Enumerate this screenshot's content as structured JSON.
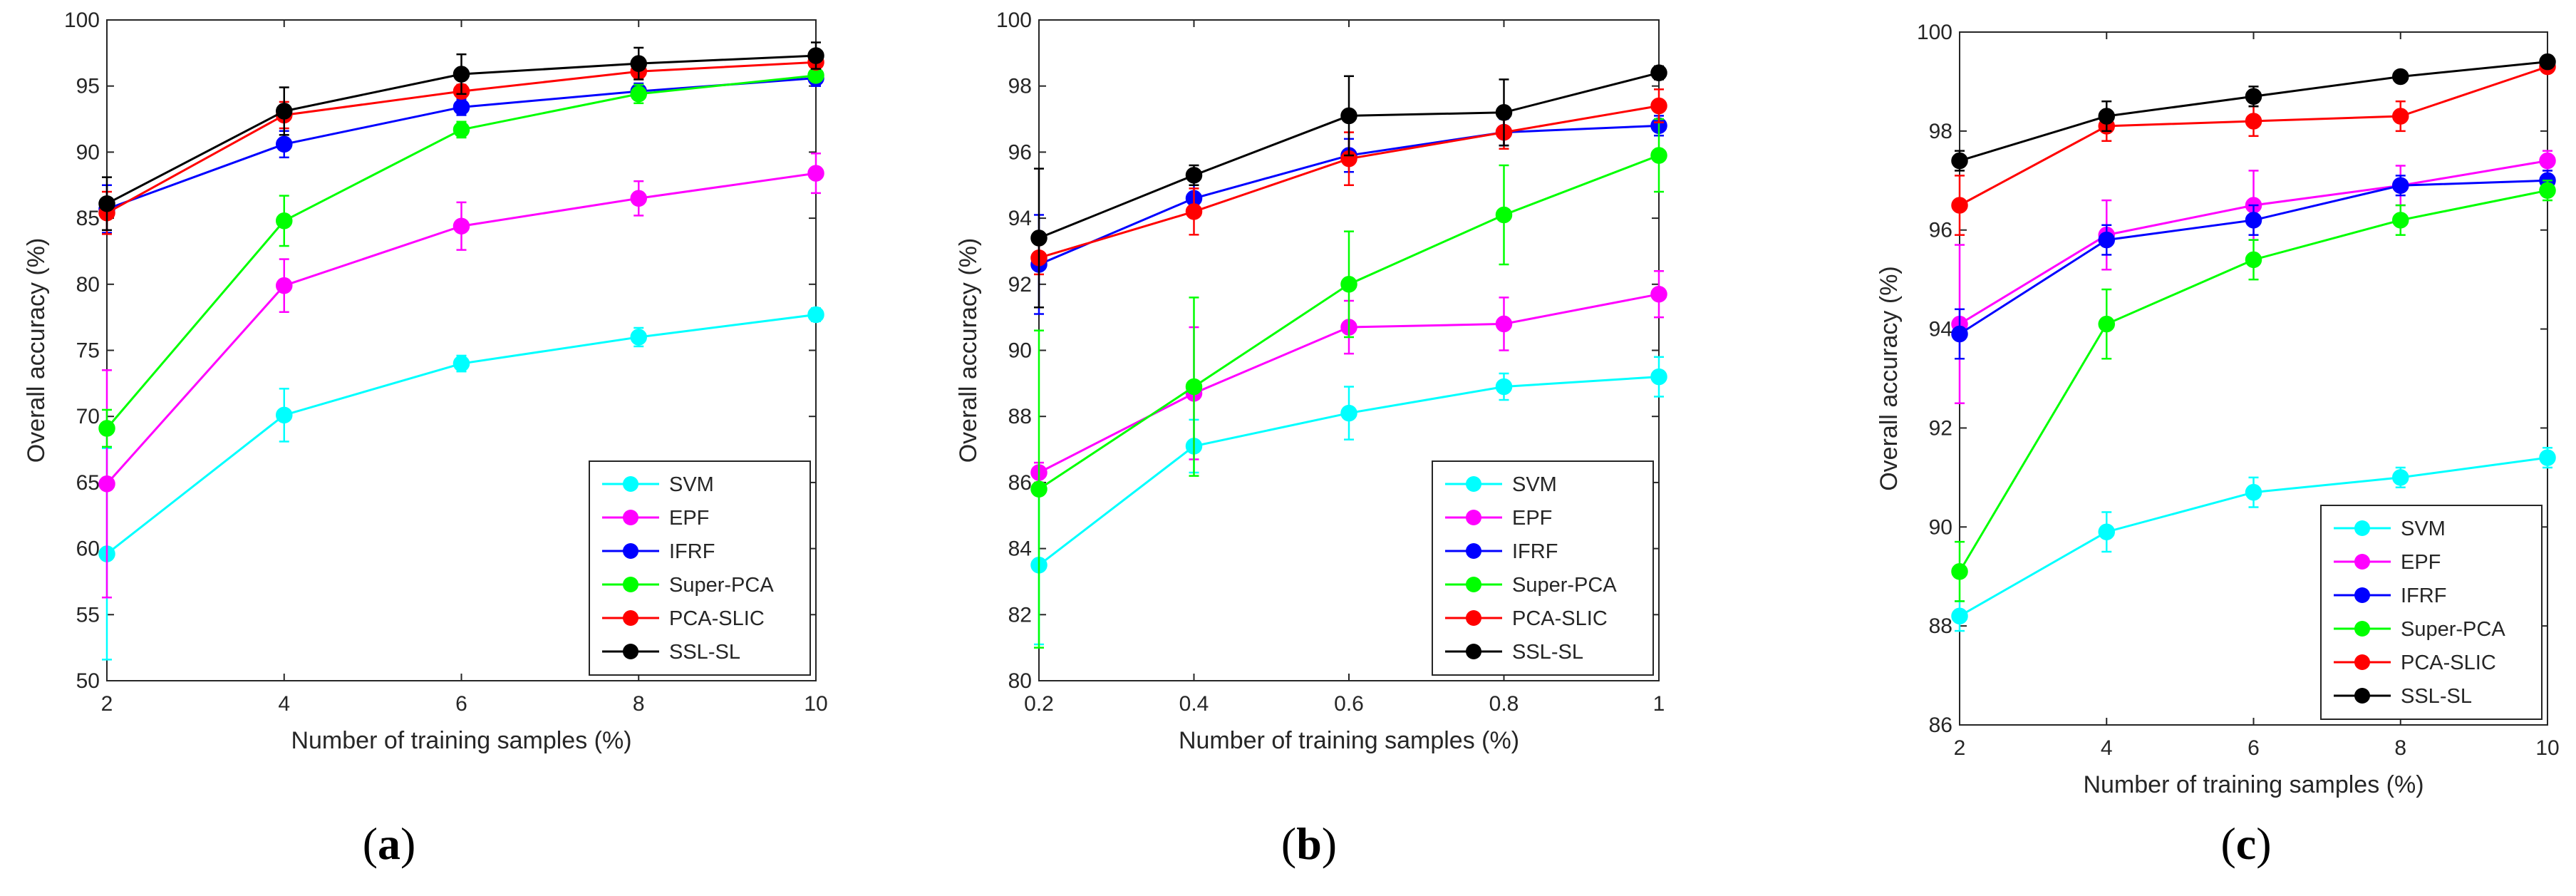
{
  "colors": {
    "SVM": "#00ffff",
    "EPF": "#ff00ff",
    "IFRF": "#0000ff",
    "Super-PCA": "#00ff00",
    "PCA-SLIC": "#ff0000",
    "SSL-SL": "#000000"
  },
  "chart_data": [
    {
      "type": "line",
      "panel": "a",
      "caption": {
        "open": "(",
        "letter": "a",
        "close": ")"
      },
      "xlabel": "Number of training samples (%)",
      "ylabel": "Overall accuracy (%)",
      "x": [
        2,
        4,
        6,
        8,
        10
      ],
      "xticks": [
        "2",
        "4",
        "6",
        "8",
        "10"
      ],
      "xlim": [
        2,
        10
      ],
      "ylim": [
        50,
        100
      ],
      "yticks": [
        "50",
        "55",
        "60",
        "65",
        "70",
        "75",
        "80",
        "85",
        "90",
        "95",
        "100"
      ],
      "legend_position": "bottom-right",
      "series": [
        {
          "name": "SVM",
          "values": [
            59.6,
            70.1,
            74.0,
            76.0,
            77.7
          ],
          "errors": [
            8.0,
            2.0,
            0.6,
            0.7,
            0.5
          ]
        },
        {
          "name": "EPF",
          "values": [
            64.9,
            79.9,
            84.4,
            86.5,
            88.4
          ],
          "errors": [
            8.6,
            2.0,
            1.8,
            1.3,
            1.5
          ]
        },
        {
          "name": "IFRF",
          "values": [
            85.7,
            90.6,
            93.4,
            94.6,
            95.6
          ],
          "errors": [
            1.8,
            1.0,
            0.6,
            0.6,
            0.6
          ]
        },
        {
          "name": "Super-PCA",
          "values": [
            69.1,
            84.8,
            91.7,
            94.4,
            95.8
          ],
          "errors": [
            1.4,
            1.9,
            0.6,
            0.7,
            0.4
          ]
        },
        {
          "name": "PCA-SLIC",
          "values": [
            85.4,
            92.8,
            94.6,
            96.1,
            96.8
          ],
          "errors": [
            1.6,
            1.0,
            0.5,
            0.6,
            0.5
          ]
        },
        {
          "name": "SSL-SL",
          "values": [
            86.1,
            93.1,
            95.9,
            96.7,
            97.3
          ],
          "errors": [
            2.0,
            1.8,
            1.5,
            1.2,
            1.0
          ]
        }
      ]
    },
    {
      "type": "line",
      "panel": "b",
      "caption": {
        "open": "(",
        "letter": "b",
        "close": ")"
      },
      "xlabel": "Number of training samples (%)",
      "ylabel": "Overall accuracy (%)",
      "x": [
        0.2,
        0.4,
        0.6,
        0.8,
        1.0
      ],
      "xticks": [
        "0.2",
        "0.4",
        "0.6",
        "0.8",
        "1"
      ],
      "xlim": [
        0.2,
        1.0
      ],
      "ylim": [
        80,
        100
      ],
      "yticks": [
        "80",
        "82",
        "84",
        "86",
        "88",
        "90",
        "92",
        "94",
        "96",
        "98",
        "100"
      ],
      "legend_position": "bottom-right",
      "series": [
        {
          "name": "SVM",
          "values": [
            83.5,
            87.1,
            88.1,
            88.9,
            89.2
          ],
          "errors": [
            2.4,
            0.8,
            0.8,
            0.4,
            0.6
          ]
        },
        {
          "name": "EPF",
          "values": [
            86.3,
            88.7,
            90.7,
            90.8,
            91.7
          ],
          "errors": [
            0.3,
            2.0,
            0.8,
            0.8,
            0.7
          ]
        },
        {
          "name": "IFRF",
          "values": [
            92.6,
            94.6,
            95.9,
            96.6,
            96.8
          ],
          "errors": [
            1.5,
            0.4,
            0.5,
            0.4,
            0.3
          ]
        },
        {
          "name": "Super-PCA",
          "values": [
            85.8,
            88.9,
            92.0,
            94.1,
            95.9
          ],
          "errors": [
            4.8,
            2.7,
            1.6,
            1.5,
            1.1
          ]
        },
        {
          "name": "PCA-SLIC",
          "values": [
            92.8,
            94.2,
            95.8,
            96.6,
            97.4
          ],
          "errors": [
            0.5,
            0.7,
            0.8,
            0.5,
            0.5
          ]
        },
        {
          "name": "SSL-SL",
          "values": [
            93.4,
            95.3,
            97.1,
            97.2,
            98.4
          ],
          "errors": [
            2.1,
            0.3,
            1.2,
            1.0,
            0.2
          ]
        }
      ]
    },
    {
      "type": "line",
      "panel": "c",
      "caption": {
        "open": "(",
        "letter": "c",
        "close": ")"
      },
      "xlabel": "Number of training samples (%)",
      "ylabel": "Overall accuracy (%)",
      "x": [
        2,
        4,
        6,
        8,
        10
      ],
      "xticks": [
        "2",
        "4",
        "6",
        "8",
        "10"
      ],
      "xlim": [
        2,
        10
      ],
      "ylim": [
        86,
        100
      ],
      "yticks": [
        "86",
        "88",
        "90",
        "92",
        "94",
        "96",
        "98",
        "100"
      ],
      "legend_position": "bottom-right",
      "series": [
        {
          "name": "SVM",
          "values": [
            88.2,
            89.9,
            90.7,
            91.0,
            91.4
          ],
          "errors": [
            0.3,
            0.4,
            0.3,
            0.2,
            0.2
          ]
        },
        {
          "name": "EPF",
          "values": [
            94.1,
            95.9,
            96.5,
            96.9,
            97.4
          ],
          "errors": [
            1.6,
            0.7,
            0.7,
            0.4,
            0.2
          ]
        },
        {
          "name": "IFRF",
          "values": [
            93.9,
            95.8,
            96.2,
            96.9,
            97.0
          ],
          "errors": [
            0.5,
            0.3,
            0.3,
            0.2,
            0.2
          ]
        },
        {
          "name": "Super-PCA",
          "values": [
            89.1,
            94.1,
            95.4,
            96.2,
            96.8
          ],
          "errors": [
            0.6,
            0.7,
            0.4,
            0.3,
            0.2
          ]
        },
        {
          "name": "PCA-SLIC",
          "values": [
            96.5,
            98.1,
            98.2,
            98.3,
            99.3
          ],
          "errors": [
            0.6,
            0.3,
            0.3,
            0.3,
            0.1
          ]
        },
        {
          "name": "SSL-SL",
          "values": [
            97.4,
            98.3,
            98.7,
            99.1,
            99.4
          ],
          "errors": [
            0.2,
            0.3,
            0.2,
            0.1,
            0.1
          ]
        }
      ]
    }
  ]
}
